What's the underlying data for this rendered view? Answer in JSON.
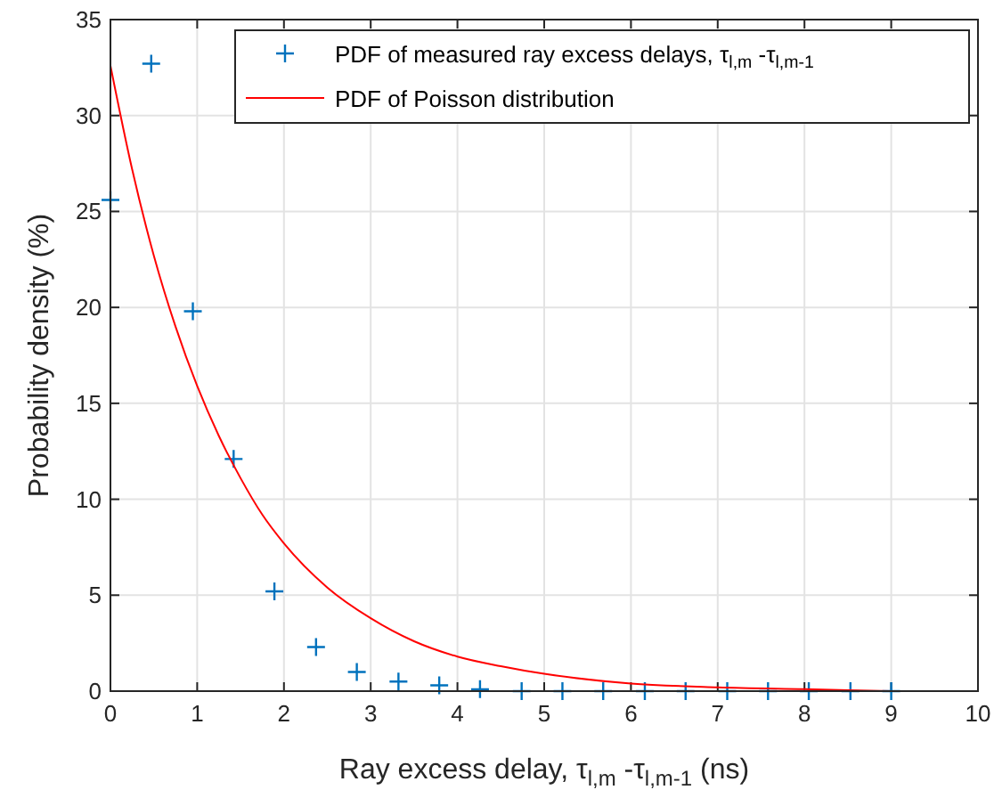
{
  "chart_data": {
    "type": "scatter",
    "xlabel": "Ray excess delay, τ$_{l,m}$ -τ$_{l,m-1}$ (ns)",
    "ylabel": "Probability density (%)",
    "xlim": [
      0,
      10
    ],
    "xticks": [
      0,
      1,
      2,
      3,
      4,
      5,
      6,
      7,
      8,
      9,
      10
    ],
    "ylim": [
      0,
      35
    ],
    "yticks": [
      0,
      5,
      10,
      15,
      20,
      25,
      30,
      35
    ],
    "grid": true,
    "legend": "top right",
    "series": [
      {
        "name": "PDF of measured ray excess delays,  τ$_{l,m}$ -τ$_{l,m-1}$",
        "marker": "cross",
        "color": "#0072bd",
        "x": [
          0,
          0.47,
          0.95,
          1.42,
          1.89,
          2.37,
          2.84,
          3.32,
          3.79,
          4.26,
          4.74,
          5.21,
          5.68,
          6.16,
          6.63,
          7.11,
          7.58,
          8.05,
          8.53,
          9.0
        ],
        "values": [
          25.6,
          32.7,
          19.8,
          12.1,
          5.2,
          2.3,
          1.0,
          0.5,
          0.3,
          0.1,
          0,
          0,
          0,
          0,
          0,
          0,
          0,
          0,
          0,
          0
        ]
      },
      {
        "name": "PDF of Poisson distribution",
        "type": "line",
        "color": "#ff0000",
        "x": [
          0,
          0.25,
          0.5,
          0.75,
          1,
          1.25,
          1.5,
          1.75,
          2,
          2.5,
          3,
          3.5,
          4,
          4.5,
          5,
          6,
          7,
          8,
          9
        ],
        "values": [
          32.6,
          27.2,
          22.7,
          19.0,
          15.9,
          13.3,
          11.1,
          9.2,
          7.7,
          5.4,
          3.8,
          2.6,
          1.8,
          1.3,
          0.9,
          0.4,
          0.2,
          0.1,
          0
        ]
      }
    ]
  }
}
